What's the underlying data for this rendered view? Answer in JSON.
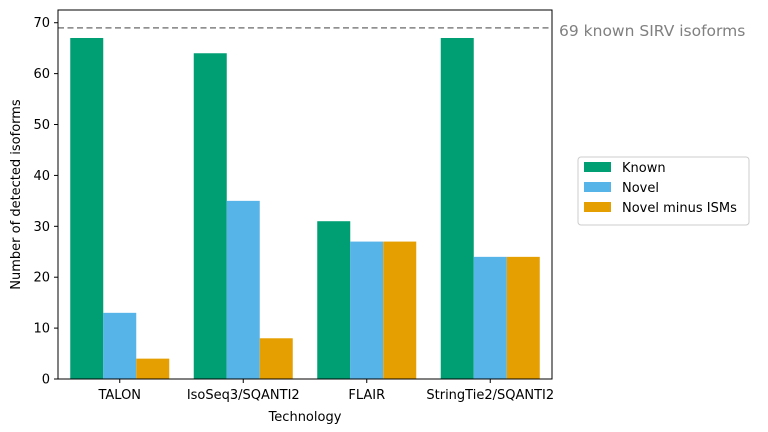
{
  "chart_data": {
    "type": "bar",
    "xlabel": "Technology",
    "ylabel": "Number of detected isoforms",
    "ylim": [
      0,
      72.5
    ],
    "yticks": [
      0,
      10,
      20,
      30,
      40,
      50,
      60,
      70
    ],
    "categories": [
      "TALON",
      "IsoSeq3/SQANTI2",
      "FLAIR",
      "StringTie2/SQANTI2"
    ],
    "series": [
      {
        "name": "Known",
        "color": "#009E73",
        "values": [
          67,
          64,
          31,
          67
        ]
      },
      {
        "name": "Novel",
        "color": "#56B4E9",
        "values": [
          13,
          35,
          27,
          24
        ]
      },
      {
        "name": "Novel minus ISMs",
        "color": "#E69F00",
        "values": [
          4,
          8,
          27,
          24
        ]
      }
    ],
    "reference_line": {
      "value": 69,
      "label": "69 known SIRV isoforms",
      "color": "#808080",
      "style": "dashed"
    },
    "legend_position": "center-right, outside plot",
    "grid": false
  }
}
